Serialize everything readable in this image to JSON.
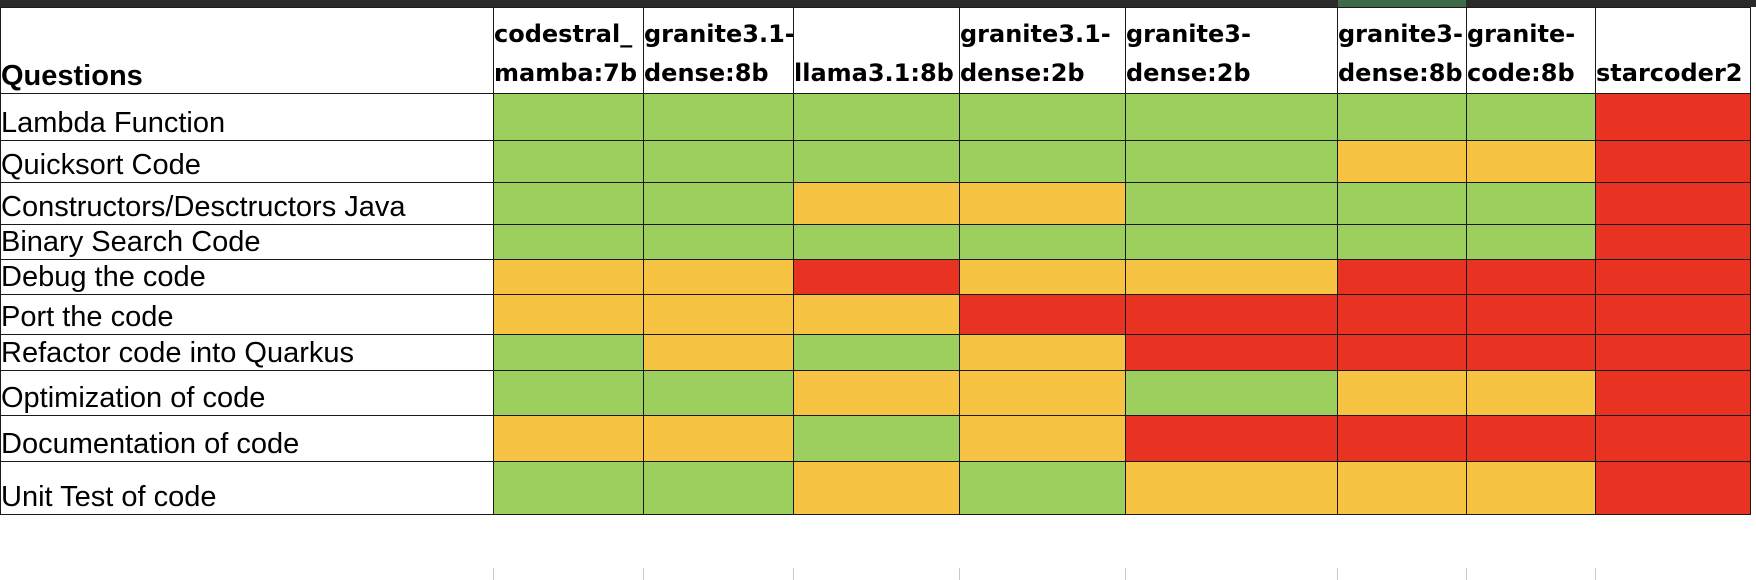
{
  "sheet": {
    "corner_header": "Questions",
    "models": [
      {
        "line1": "codestral_",
        "line2": "mamba:7b"
      },
      {
        "line1": "granite3.1-",
        "line2": "dense:8b"
      },
      {
        "line1": "",
        "line2": "llama3.1:8b"
      },
      {
        "line1": "granite3.1-",
        "line2": "dense:2b"
      },
      {
        "line1": "granite3-",
        "line2": "dense:2b"
      },
      {
        "line1": "granite3-",
        "line2": "dense:8b"
      },
      {
        "line1": "granite-",
        "line2": "code:8b"
      },
      {
        "line1": "",
        "line2": "starcoder2"
      }
    ],
    "questions": [
      {
        "label": "Lambda Function",
        "ratings": [
          "green",
          "green",
          "green",
          "green",
          "green",
          "green",
          "green",
          "red"
        ]
      },
      {
        "label": "Quicksort Code",
        "ratings": [
          "green",
          "green",
          "green",
          "green",
          "green",
          "yellow",
          "yellow",
          "red"
        ]
      },
      {
        "label": "Constructors/Desctructors Java",
        "ratings": [
          "green",
          "green",
          "yellow",
          "yellow",
          "green",
          "green",
          "green",
          "red"
        ]
      },
      {
        "label": "Binary Search Code",
        "ratings": [
          "green",
          "green",
          "green",
          "green",
          "green",
          "green",
          "green",
          "red"
        ]
      },
      {
        "label": "Debug the code",
        "ratings": [
          "yellow",
          "yellow",
          "red",
          "yellow",
          "yellow",
          "red",
          "red",
          "red"
        ]
      },
      {
        "label": "Port the code",
        "ratings": [
          "yellow",
          "yellow",
          "yellow",
          "red",
          "red",
          "red",
          "red",
          "red"
        ]
      },
      {
        "label": "Refactor code into Quarkus",
        "ratings": [
          "green",
          "yellow",
          "green",
          "yellow",
          "red",
          "red",
          "red",
          "red"
        ]
      },
      {
        "label": "Optimization of code",
        "ratings": [
          "green",
          "green",
          "yellow",
          "yellow",
          "green",
          "yellow",
          "yellow",
          "red"
        ]
      },
      {
        "label": "Documentation of code",
        "ratings": [
          "yellow",
          "yellow",
          "green",
          "yellow",
          "red",
          "red",
          "red",
          "red"
        ]
      },
      {
        "label": "Unit Test of code",
        "ratings": [
          "green",
          "green",
          "yellow",
          "green",
          "yellow",
          "yellow",
          "yellow",
          "red"
        ]
      }
    ]
  },
  "colors": {
    "green": "#9dcf5f",
    "yellow": "#f6c343",
    "red": "#e83323"
  }
}
